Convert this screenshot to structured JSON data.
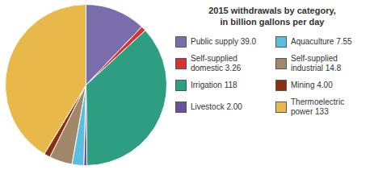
{
  "chart_data": {
    "type": "pie",
    "title": "2015 withdrawals by category,\nin billion gallons per day",
    "categories": [
      "Public supply 39.0",
      "Self-supplied\ndomestic 3.26",
      "Irrigation 118",
      "Livestock 2.00",
      "Aquaculture 7.55",
      "Self-supplied\nindustrial 14.8",
      "Mining 4.00",
      "Thermoelectric\npower 133"
    ],
    "values": [
      39.0,
      3.26,
      118.0,
      2.0,
      7.55,
      14.8,
      4.0,
      133.0
    ],
    "colors": [
      "#7b6dab",
      "#d93030",
      "#2e9e82",
      "#6b4fa0",
      "#5bbde0",
      "#a08868",
      "#8b3010",
      "#e8b84a"
    ],
    "legend": "right"
  }
}
